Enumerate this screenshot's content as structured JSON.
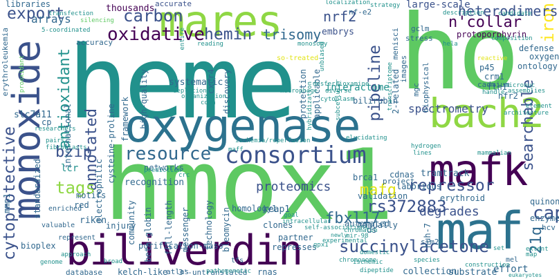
{
  "palette": {
    "background": "#ffffff",
    "dark_purple": "#440154",
    "indigo": "#3b528b",
    "blue": "#31688e",
    "teal": "#21918c",
    "sea_green": "#1f9e89",
    "green": "#5ec962",
    "lime": "#8fd744",
    "yellow": "#e2e418",
    "gold": "#fde725"
  },
  "words": {
    "heme": "heme",
    "ho": "ho",
    "hmox1": "hmox1",
    "oxygenase": "oxygenase",
    "maf": "maf",
    "biliverdin": "biliverdin",
    "mafk": "mafk",
    "bach2": "bach2",
    "mares": "mares",
    "monoxide": "monoxide",
    "consortium": "consortium",
    "resource": "resource",
    "oxidative": "oxidative",
    "carbon": "carbon",
    "hemin": "hemin",
    "export": "export",
    "annotated": "annotated",
    "antioxidant": "antioxidant",
    "cytoprotective": "cytoprotective",
    "succinylacetone": "succinylacetone",
    "rs372883": "rs372883",
    "repressor": "repressor",
    "searchable": "searchable",
    "pipeline": "pipeline",
    "iron": "iron",
    "ncollar": "n'collar",
    "heterodimers": "heterodimers",
    "nrf2": "nrf2",
    "trisomy": "trisomy",
    "cap": "cap",
    "fbxl17": "fbxl17",
    "21q": "21q",
    "mafg": "mafg",
    "tags": "tags",
    "bzip": "bzip",
    "proteomics": "proteomics",
    "degrades": "degrades",
    "spectrometry": "spectrometry",
    "interactome": "interactome",
    "protoporphyrin": "protoporphyrin",
    "large_scale": "large-scale",
    "embrys": "embrys",
    "thousands": "thousands",
    "accurate": "accurate",
    "libraries": "libraries",
    "erythroleukemia": "erythroleukemia",
    "slc7a11": "slc7a11",
    "arrays": "arrays",
    "mmp1": "mmp1",
    "lcr": "lcr",
    "motifs": "motifs",
    "red": "red",
    "riken": "riken",
    "injury": "injury",
    "bioplex": "bioplex",
    "database": "database",
    "kelch_like": "kelch-like",
    "atlas": "atlas",
    "utr": "3'-untranslated",
    "tfs": "tfs",
    "rnas": "rnas",
    "collection": "collection",
    "substrate": "substrate",
    "effort": "effort",
    "mel": "mel",
    "hcv": "hcv",
    "enzyme": "enzyme",
    "quinone": "quinone",
    "erythroid": "erythroid",
    "validation": "validation",
    "laborious": "laborious",
    "manually": "manually",
    "ds": "ds",
    "partner": "partner",
    "represses": "represses",
    "clones": "clones",
    "keap1": "keap1",
    "homology1": "homology1",
    "recognition": "recognition",
    "purification_mass": "purification-mass",
    "full_length": "full-length",
    "beta_globin": "beta-globin",
    "community": "community",
    "messenger": "messenger",
    "technology": "technology",
    "bleomycin": "bleomycin",
    "electrophilic": "electrophilic",
    "standardized": "standardized",
    "cdnas": "cdnas",
    "tramtrack": "tramtrack",
    "project": "project",
    "brca1": "brca1",
    "automated": "automated",
    "bilirubin": "bilirubin",
    "crm1": "crm1",
    "fth1": "fth1",
    "nfr2": "nfr2",
    "p45": "p45",
    "cadmium": "cadmium",
    "ontology": "ontology",
    "oxygen": "oxygen",
    "defense": "defense",
    "systematic": "systematic",
    "cxcr4": "cxcr4",
    "high_quality": "high-quality",
    "discovery": "discovery",
    "protection": "protection",
    "applicable": "applicable",
    "two_related": "2-related",
    "mgc": "mgc",
    "biophysical": "biophysical",
    "images": "images",
    "menisci": "menisci",
    "stress": "stress",
    "gclm": "gclm",
    "nfe2": "nf-e2",
    "international": "international",
    "cysteine_proline": "cysteine-proline",
    "framework": "framework",
    "cp": "cp",
    "networks": "networks",
    "huh7": "huh-7",
    "sim2": "sim2",
    "accuracy": "accuracy",
    "silencing": "silencing",
    "transfection": "transfection",
    "localization": "localization",
    "strategy": "strategy",
    "description": "description",
    "candidate": "candidate",
    "entire": "entire",
    "unbiased": "unbiased",
    "so_treated": "so-treated",
    "prooxidant": "prooxidant",
    "five_coordinated": "5-coordinated",
    "reading": "reading",
    "monosomy": "monosomy",
    "hela": "hela",
    "composition": "composition",
    "depletion": "depletion",
    "organization": "organization",
    "cdna": "cdna",
    "desferrioxamine": "desferrioxamine",
    "diverse": "diverse",
    "macrophage": "macrophage",
    "subcellular": "subcellular",
    "hybridization": "hybridization",
    "transcriptome": "transcriptome",
    "cytoplasm": "cytoplasm",
    "reactive": "reactive",
    "micronuc": "micronuc",
    "assemblies": "assemblies",
    "handle": "handle",
    "element": "element",
    "architecture": "architecture",
    "hydrogen": "hydrogen",
    "lines": "lines",
    "ischemia_reperfusion": "ischemia/reperfusion",
    "maff": "maff",
    "elucidating": "elucidating",
    "researchers": "researchers",
    "pairs": "pairs",
    "fibroblasts": "fibroblasts",
    "enriched": "enriched",
    "valuable": "valuable",
    "represent": "represent",
    "approach": "approach",
    "genome": "genome",
    "broad": "broad",
    "pathogenetic": "pathogenetic",
    "dipeptide": "dipeptide",
    "eukaryotes": "eukaryotes",
    "species": "species",
    "chromosome": "chromosome",
    "domestic": "domestic",
    "ischemic": "ischemic",
    "construction": "construction",
    "experimental": "experimental",
    "mir98": "mir-98",
    "gpx1": "gpx1",
    "chromatin": "chromatin",
    "intracellular": "intracellular",
    "self_associations": "self-associations",
    "newly": "newly",
    "goal": "goal",
    "prediction": "prediction",
    "set": "set",
    "map": "map",
    "extent": "extent",
    "mammalian": "mammalian",
    "crc": "crc"
  }
}
